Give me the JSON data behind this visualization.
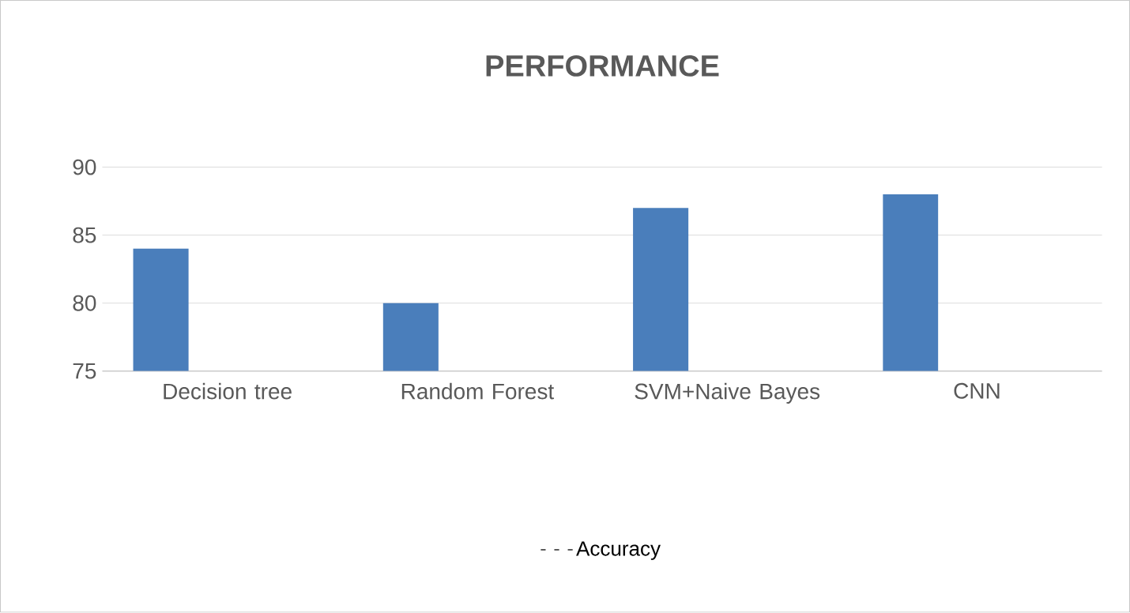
{
  "chart_data": {
    "type": "bar",
    "title": "PERFORMANCE",
    "categories": [
      "Decision tree",
      "Random Forest",
      "SVM+Naive Bayes",
      "CNN"
    ],
    "series": [
      {
        "name": "Accuracy",
        "color": "#4a7ebb",
        "values": [
          84,
          80,
          87,
          88
        ]
      }
    ],
    "ylim": [
      75,
      90
    ],
    "yticks": [
      75,
      80,
      85,
      90
    ],
    "grid": "y",
    "legend": "bottom"
  }
}
